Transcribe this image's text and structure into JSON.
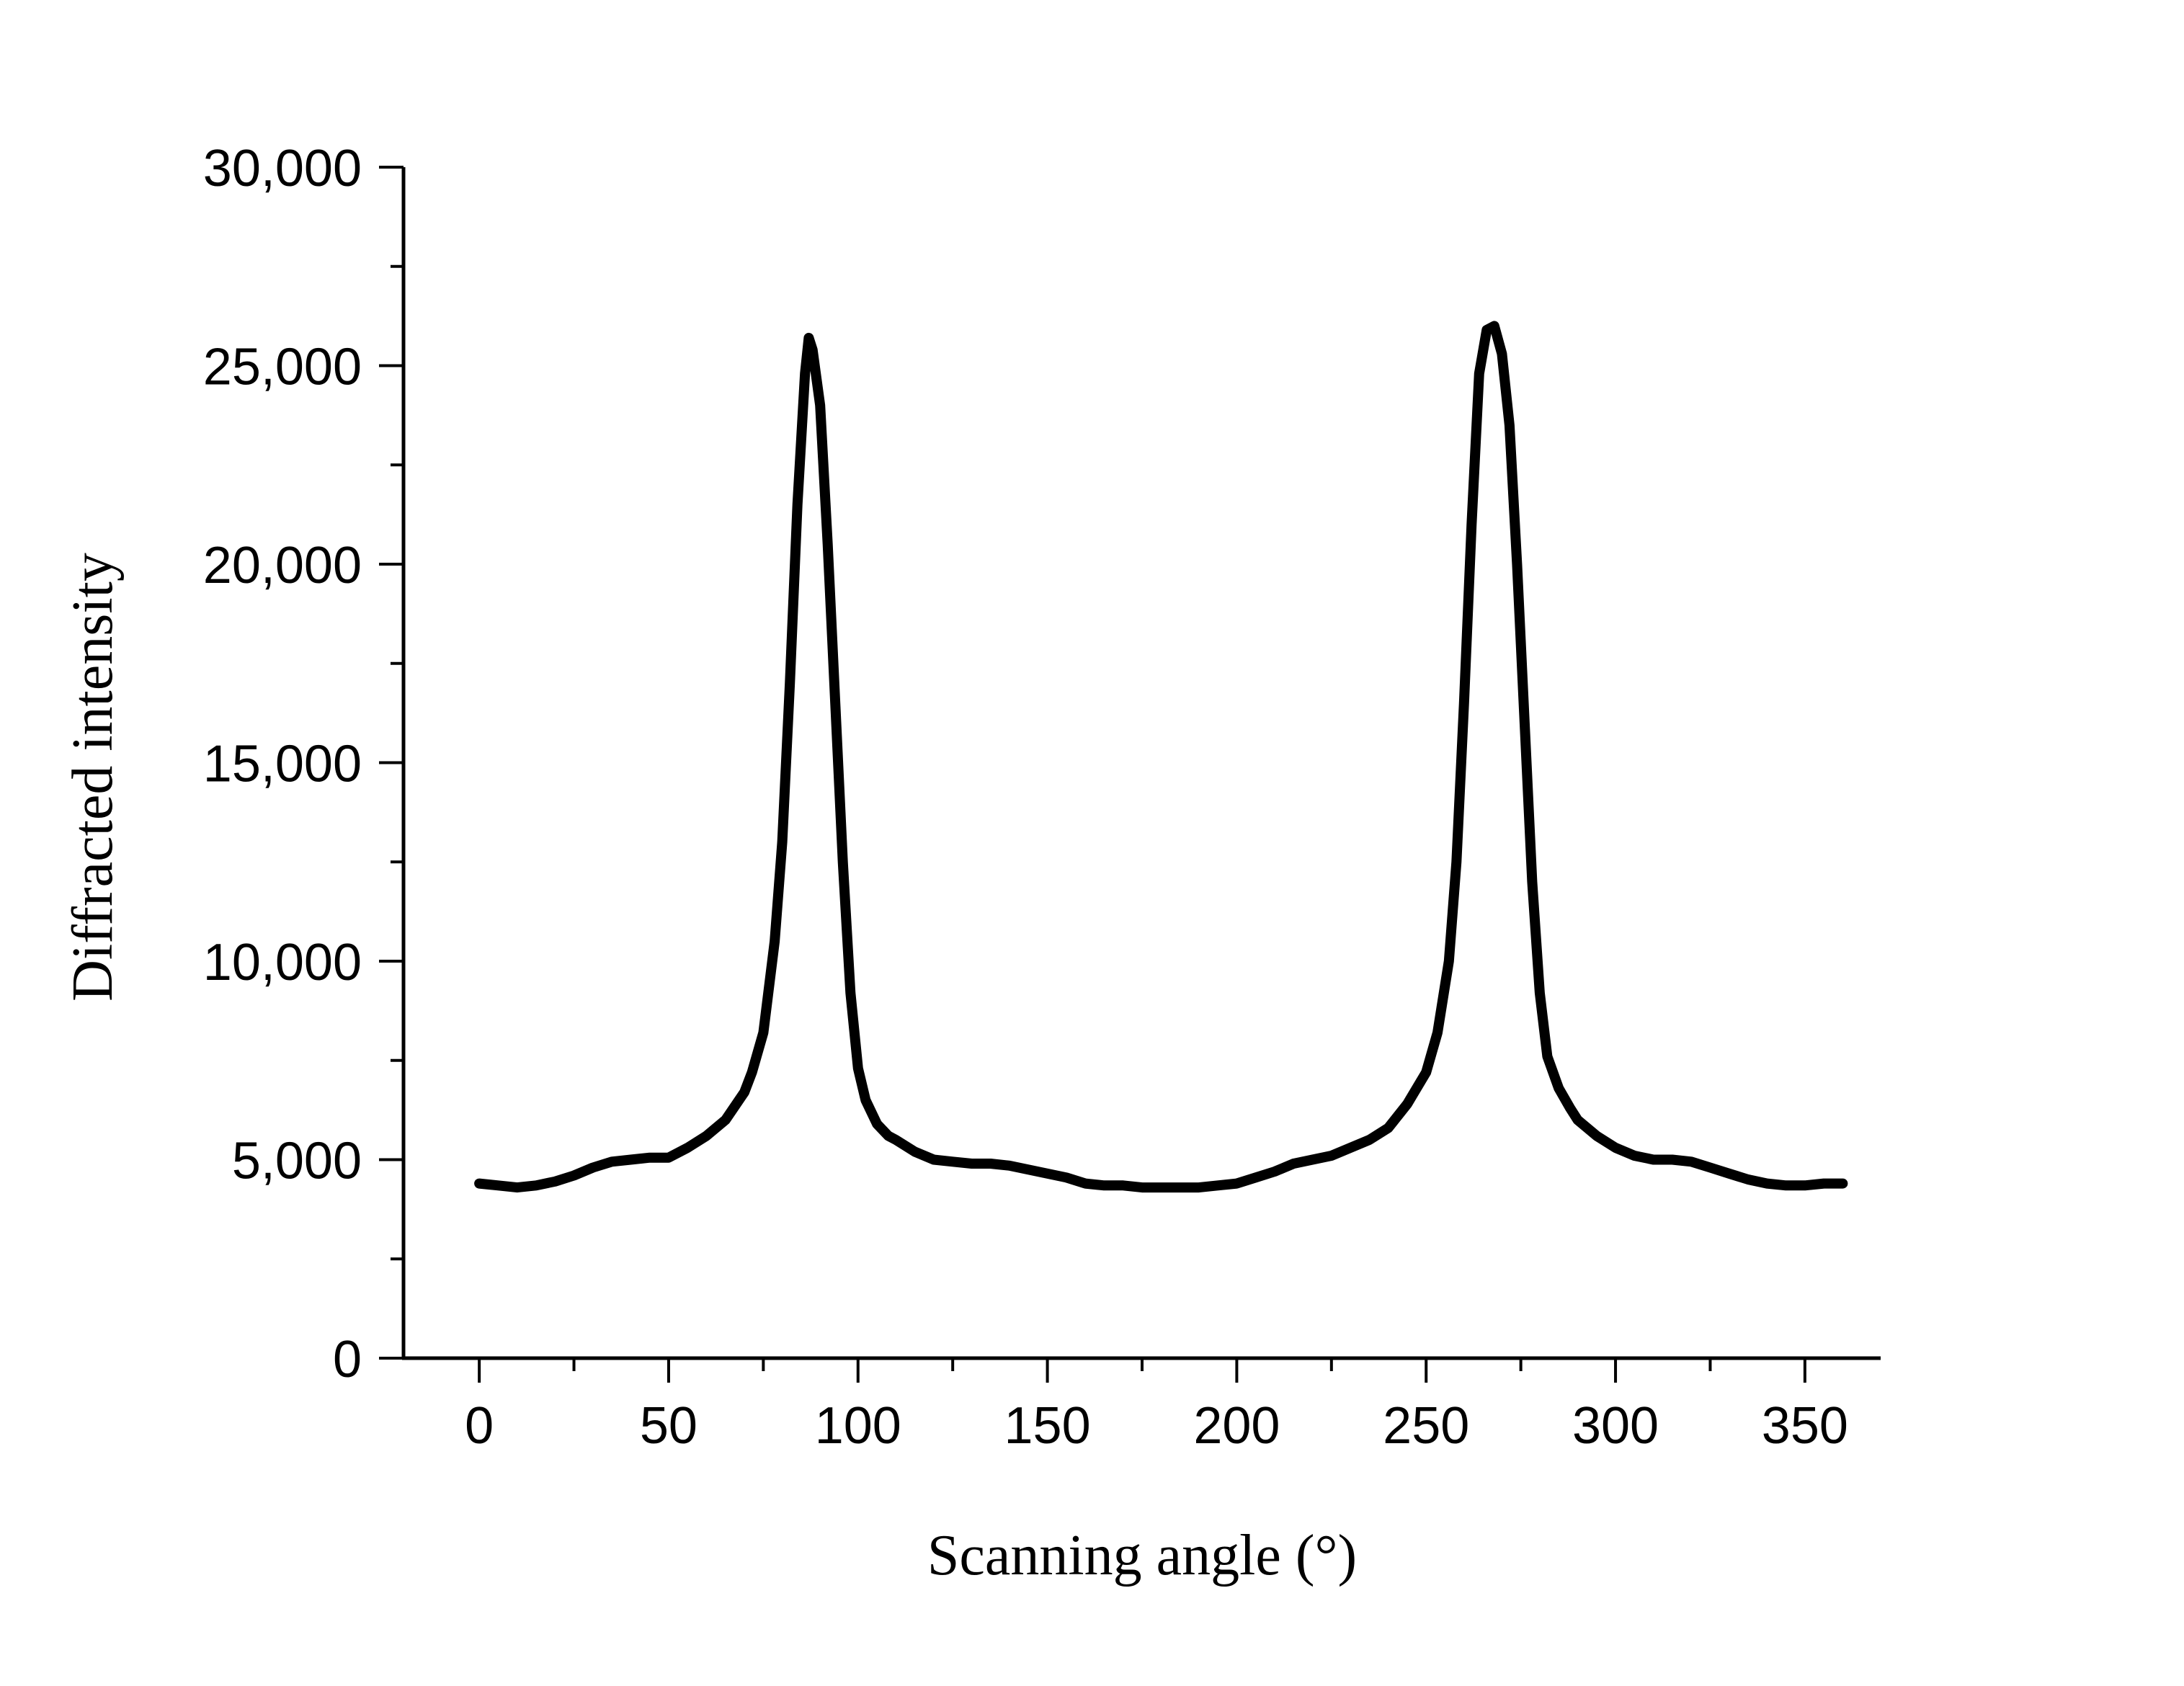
{
  "chart_data": {
    "type": "line",
    "title": "",
    "xlabel": "Scanning angle (°)",
    "ylabel": "Diffracted intensity",
    "xlim": [
      -20,
      370
    ],
    "ylim": [
      0,
      30000
    ],
    "x_ticks": [
      0,
      50,
      100,
      150,
      200,
      250,
      300,
      350
    ],
    "x_tick_labels": [
      "0",
      "50",
      "100",
      "150",
      "200",
      "250",
      "300",
      "350"
    ],
    "y_ticks": [
      0,
      5000,
      10000,
      15000,
      20000,
      25000,
      30000
    ],
    "y_tick_labels": [
      "0",
      "5,000",
      "10,000",
      "15,000",
      "20,000",
      "25,000",
      "30,000"
    ],
    "grid": false,
    "legend": "none",
    "line_color": "#000000",
    "series": [
      {
        "x": [
          0,
          5,
          10,
          15,
          20,
          25,
          30,
          35,
          40,
          45,
          50,
          55,
          60,
          65,
          70,
          72,
          75,
          78,
          80,
          82,
          84,
          86,
          87,
          88,
          90,
          92,
          94,
          96,
          98,
          100,
          102,
          105,
          108,
          110,
          115,
          120,
          125,
          130,
          135,
          140,
          145,
          150,
          155,
          160,
          165,
          170,
          175,
          180,
          185,
          190,
          195,
          200,
          205,
          210,
          215,
          220,
          225,
          230,
          235,
          240,
          245,
          250,
          253,
          256,
          258,
          260,
          262,
          264,
          266,
          268,
          270,
          272,
          274,
          276,
          278,
          280,
          282,
          285,
          288,
          290,
          295,
          300,
          305,
          310,
          315,
          320,
          325,
          330,
          335,
          340,
          345,
          350,
          355,
          360
        ],
        "y": [
          4400,
          4350,
          4300,
          4350,
          4450,
          4600,
          4800,
          4950,
          5000,
          5050,
          5050,
          5300,
          5600,
          6000,
          6700,
          7200,
          8200,
          10500,
          13000,
          17000,
          21500,
          24800,
          25700,
          25400,
          24000,
          20500,
          16500,
          12500,
          9200,
          7300,
          6500,
          5900,
          5600,
          5500,
          5200,
          5000,
          4950,
          4900,
          4900,
          4850,
          4750,
          4650,
          4550,
          4400,
          4350,
          4350,
          4300,
          4300,
          4300,
          4300,
          4350,
          4400,
          4550,
          4700,
          4900,
          5000,
          5100,
          5300,
          5500,
          5800,
          6400,
          7200,
          8200,
          10000,
          12500,
          16500,
          21000,
          24800,
          25900,
          26000,
          25300,
          23500,
          20000,
          16000,
          12000,
          9200,
          7600,
          6800,
          6300,
          6000,
          5600,
          5300,
          5100,
          5000,
          5000,
          4950,
          4800,
          4650,
          4500,
          4400,
          4350,
          4350,
          4400,
          4400
        ]
      }
    ]
  }
}
